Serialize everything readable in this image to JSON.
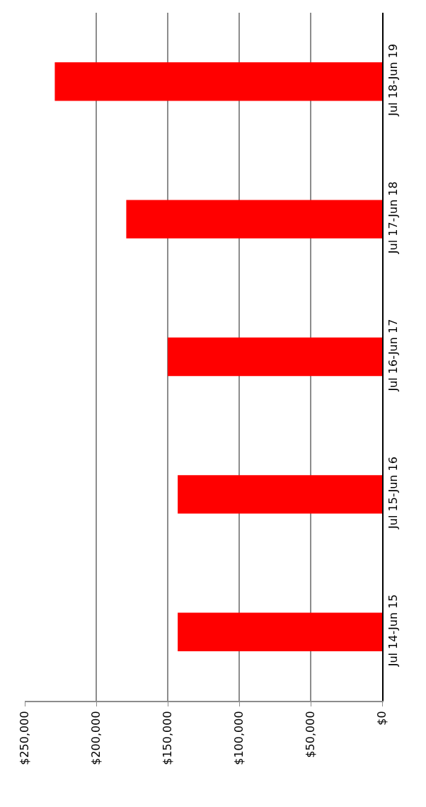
{
  "chart_data": {
    "type": "bar",
    "orientation": "horizontal",
    "categories": [
      "Jul 18-Jun 19",
      "Jul 17-Jun 18",
      "Jul 16-Jun 17",
      "Jul 15-Jun 16",
      "Jul 14-Jun 15"
    ],
    "values": [
      229000,
      179000,
      150000,
      143000,
      143000
    ],
    "color": "#ff0000",
    "xlim": [
      250000,
      0
    ],
    "xticks": [
      {
        "value": 250000,
        "label": "$250,000"
      },
      {
        "value": 200000,
        "label": "$200,000"
      },
      {
        "value": 150000,
        "label": "$150,000"
      },
      {
        "value": 100000,
        "label": "$100,000"
      },
      {
        "value": 50000,
        "label": "$50,000"
      },
      {
        "value": 0,
        "label": "$0"
      }
    ],
    "grid": "x"
  }
}
